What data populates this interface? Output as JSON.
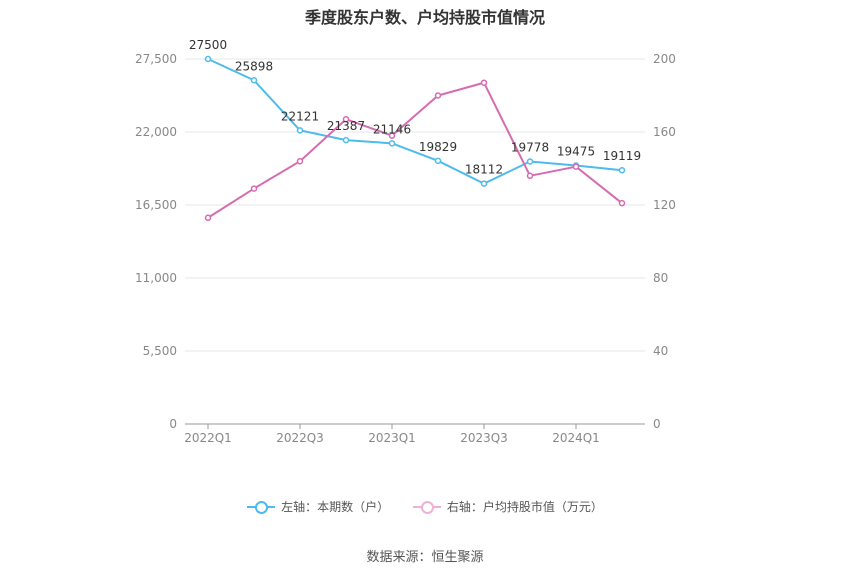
{
  "chart_data": {
    "type": "line",
    "title": "季度股东户数、户均持股市值情况",
    "categories": [
      "2022Q1",
      "2022Q2",
      "2022Q3",
      "2022Q4",
      "2023Q1",
      "2023Q2",
      "2023Q3",
      "2023Q4",
      "2024Q1",
      "2024Q2"
    ],
    "x_tick_labels": [
      "2022Q1",
      "2022Q3",
      "2023Q1",
      "2023Q3",
      "2024Q1"
    ],
    "left_axis": {
      "ylim": [
        0,
        27500
      ],
      "ticks": [
        "0",
        "5,500",
        "11,000",
        "16,500",
        "22,000",
        "27,500"
      ]
    },
    "right_axis": {
      "ylim": [
        0,
        200
      ],
      "ticks": [
        "0",
        "40",
        "80",
        "120",
        "160",
        "200"
      ]
    },
    "grid": true,
    "legend_position": "bottom",
    "series": [
      {
        "name": "左轴：本期数（户）",
        "axis": "left",
        "color": "#4dbbeb",
        "values": [
          27500,
          25898,
          22121,
          21387,
          21146,
          19829,
          18112,
          19778,
          19475,
          19119
        ],
        "labels": [
          "27500",
          "25898",
          "22121",
          "21387",
          "21146",
          "19829",
          "18112",
          "19778",
          "19475",
          "19119"
        ]
      },
      {
        "name": "右轴：户均持股市值（万元）",
        "axis": "right",
        "color": "#d66bb0",
        "values": [
          113,
          129,
          144,
          167,
          158,
          180,
          187,
          136,
          141,
          121
        ]
      }
    ]
  },
  "source": "数据来源：恒生聚源"
}
